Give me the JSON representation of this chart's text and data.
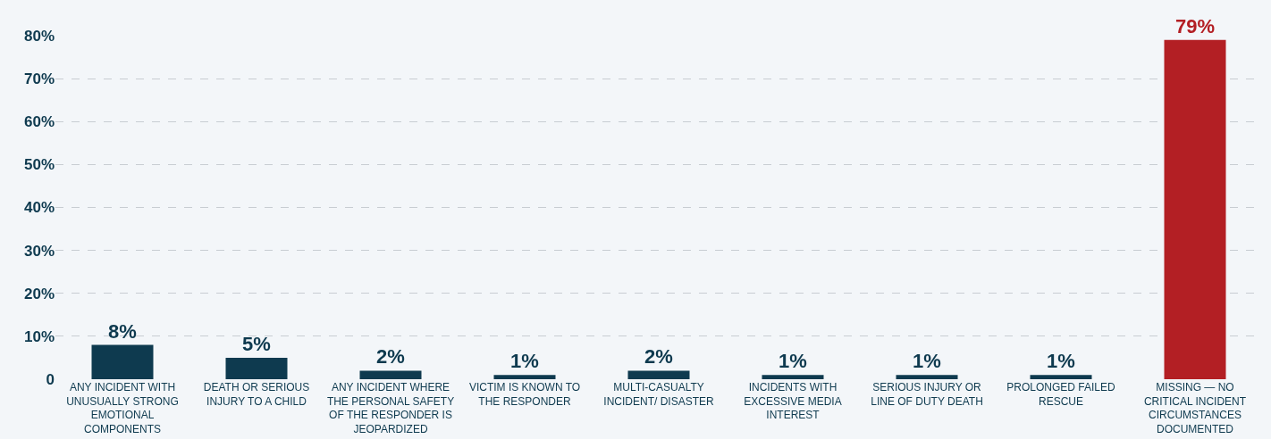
{
  "chart_data": {
    "type": "bar",
    "categories": [
      "ANY INCIDENT WITH UNUSUALLY STRONG EMOTIONAL COMPONENTS",
      "DEATH OR SERIOUS INJURY TO A CHILD",
      "ANY INCIDENT WHERE THE PERSONAL SAFETY OF THE RESPONDER IS JEOPARDIZED",
      "VICTIM IS KNOWN TO THE RESPONDER",
      "MULTI-CASUALTY INCIDENT/ DISASTER",
      "INCIDENTS WITH EXCESSIVE MEDIA INTEREST",
      "SERIOUS INJURY OR LINE OF DUTY DEATH",
      "PROLONGED FAILED RESCUE",
      "MISSING — NO CRITICAL INCIDENT CIRCUMSTANCES DOCUMENTED"
    ],
    "values": [
      8,
      5,
      2,
      1,
      2,
      1,
      1,
      1,
      79
    ],
    "value_labels": [
      "8%",
      "5%",
      "2%",
      "1%",
      "2%",
      "1%",
      "1%",
      "1%",
      "79%"
    ],
    "colors": [
      "#0e3a4f",
      "#0e3a4f",
      "#0e3a4f",
      "#0e3a4f",
      "#0e3a4f",
      "#0e3a4f",
      "#0e3a4f",
      "#0e3a4f",
      "#b31f24"
    ],
    "ylim": [
      0,
      80
    ],
    "yticks": [
      0,
      {
        "value": 10,
        "label": "10%"
      },
      {
        "value": 20,
        "label": "20%"
      },
      {
        "value": 30,
        "label": "30%"
      },
      {
        "value": 40,
        "label": "40%"
      },
      {
        "value": 50,
        "label": "50%"
      },
      {
        "value": 60,
        "label": "60%"
      },
      {
        "value": 70,
        "label": "70%"
      },
      {
        "value": 80,
        "label": "80%"
      }
    ],
    "grid": "y",
    "legend": false
  }
}
